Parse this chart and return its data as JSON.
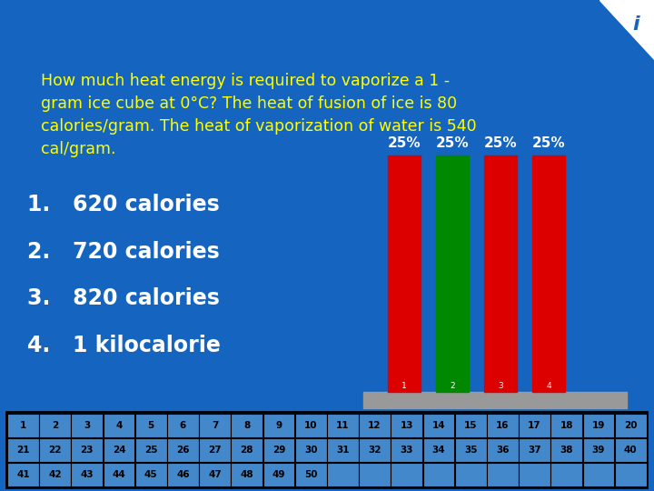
{
  "bg_color": "#1565C0",
  "question_text": "How much heat energy is required to vaporize a 1 -\ngram ice cube at 0°C? The heat of fusion of ice is 80\ncalories/gram. The heat of vaporization of water is 540\ncal/gram.",
  "question_color": "#FFFF00",
  "question_fontsize": 12.5,
  "answers": [
    "1.   620 calories",
    "2.   720 calories",
    "3.   820 calories",
    "4.   1 kilocalorie"
  ],
  "answer_color": "#FFFFFF",
  "answer_fontsize": 17,
  "bar_colors": [
    "#DD0000",
    "#008800",
    "#DD0000",
    "#DD0000"
  ],
  "bar_labels": [
    "25%",
    "25%",
    "25%",
    "25%"
  ],
  "bar_label_color": "#FFFFFF",
  "platform_color": "#999999",
  "number_grid": {
    "rows": [
      [
        1,
        2,
        3,
        4,
        5,
        6,
        7,
        8,
        9,
        10,
        11,
        12,
        13,
        14,
        15,
        16,
        17,
        18,
        19,
        20
      ],
      [
        21,
        22,
        23,
        24,
        25,
        26,
        27,
        28,
        29,
        30,
        31,
        32,
        33,
        34,
        35,
        36,
        37,
        38,
        39,
        40
      ],
      [
        41,
        42,
        43,
        44,
        45,
        46,
        47,
        48,
        49,
        50
      ]
    ],
    "cell_bg": "#4488CC",
    "grid_border": "#000000",
    "grid_text_color": "#000000",
    "num_cols": 20
  }
}
